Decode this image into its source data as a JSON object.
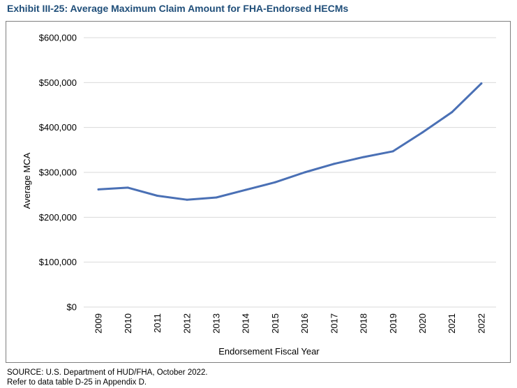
{
  "header": {
    "title": "Exhibit III-25: Average Maximum Claim Amount for FHA-Endorsed HECMs"
  },
  "footer": {
    "source_line": "SOURCE: U.S. Department of HUD/FHA, October 2022.",
    "refer_line": "Refer to data table D-25 in Appendix D."
  },
  "colors": {
    "series": "#4a70b5",
    "grid": "#d9d9d9",
    "title": "#1f4e79"
  },
  "chart_data": {
    "type": "line",
    "title": "",
    "xlabel": "Endorsement Fiscal Year",
    "ylabel": "Average MCA",
    "ylim": [
      0,
      600000
    ],
    "y_ticks": [
      0,
      100000,
      200000,
      300000,
      400000,
      500000,
      600000
    ],
    "y_tick_labels": [
      "$0",
      "$100,000",
      "$200,000",
      "$300,000",
      "$400,000",
      "$500,000",
      "$600,000"
    ],
    "categories": [
      "2009",
      "2010",
      "2011",
      "2012",
      "2013",
      "2014",
      "2015",
      "2016",
      "2017",
      "2018",
      "2019",
      "2020",
      "2021",
      "2022"
    ],
    "series": [
      {
        "values": [
          262000,
          266000,
          248000,
          239000,
          244000,
          261000,
          278000,
          300000,
          319000,
          334000,
          347000,
          389000,
          434000,
          498000
        ]
      }
    ],
    "grid": true,
    "legend": "none"
  }
}
